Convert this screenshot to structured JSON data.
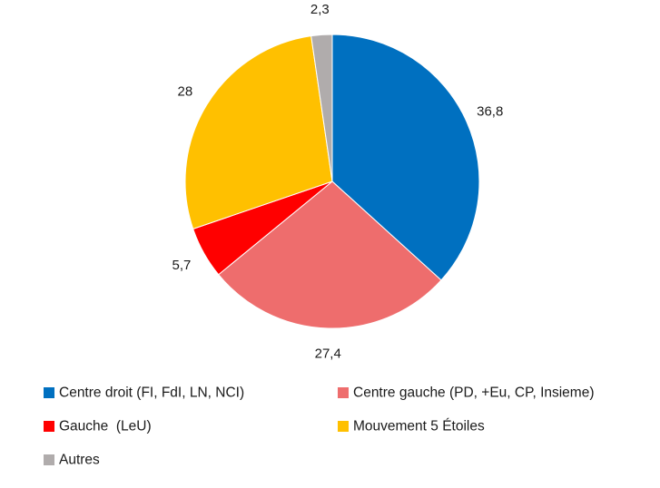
{
  "chart_data": {
    "type": "pie",
    "title": "",
    "series": [
      {
        "values": [
          36.8,
          27.4,
          5.7,
          28,
          2.3
        ],
        "labels": [
          "36,8",
          "27,4",
          "5,7",
          "28",
          "2,3"
        ]
      }
    ],
    "categories": [
      "Centre droit (FI, FdI, LN, NCI)",
      "Centre gauche (PD, +Eu, CP, Insieme)",
      "Gauche  (LeU)",
      "Mouvement 5 Étoiles",
      "Autres"
    ],
    "colors": [
      "#0070c0",
      "#ee6d6d",
      "#ff0000",
      "#ffc000",
      "#b0acac"
    ],
    "start_angle": "12 o'clock",
    "direction": "clockwise",
    "legend": {
      "placement": "bottom",
      "columns": 2,
      "items": [
        "Centre droit (FI, FdI, LN, NCI)",
        "Centre gauche (PD, +Eu, CP, Insieme)",
        "Gauche  (LeU)",
        "Mouvement 5 Étoiles",
        "Autres"
      ]
    }
  }
}
